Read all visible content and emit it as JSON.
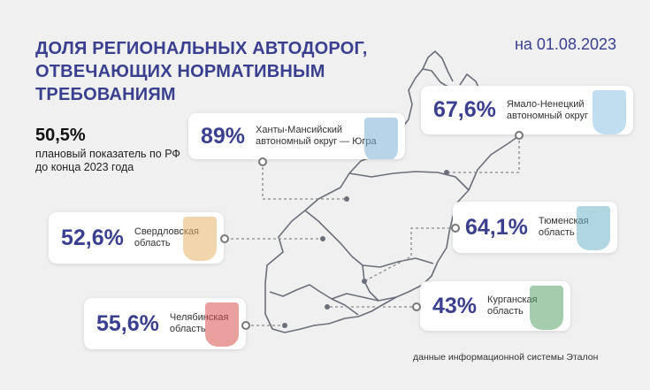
{
  "header": {
    "title": "ДОЛЯ РЕГИОНАЛЬНЫХ АВТОДОРОГ, ОТВЕЧАЮЩИХ НОРМАТИВНЫМ ТРЕБОВАНИЯМ",
    "date": "на 01.08.2023"
  },
  "indicator": {
    "value": "50,5%",
    "caption": "плановый показатель по РФ до конца 2023 года"
  },
  "regions": [
    {
      "pct": "89%",
      "name_line1": "Ханты-Мансийский",
      "name_line2": "автономный округ — Югра",
      "emblem": "khmao-emblem",
      "emblem_color": "#7db1d6"
    },
    {
      "pct": "67,6%",
      "name_line1": "Ямало-Ненецкий",
      "name_line2": "автономный округ",
      "emblem": "yanao-emblem",
      "emblem_color": "#8cc3e3"
    },
    {
      "pct": "52,6%",
      "name_line1": "Свердловская",
      "name_line2": "область",
      "emblem": "sverdlovsk-emblem",
      "emblem_color": "#e5b56a"
    },
    {
      "pct": "64,1%",
      "name_line1": "Тюменская",
      "name_line2": "область",
      "emblem": "tyumen-emblem",
      "emblem_color": "#6fb4c9"
    },
    {
      "pct": "43%",
      "name_line1": "Курганская",
      "name_line2": "область",
      "emblem": "kurgan-emblem",
      "emblem_color": "#5aa46a"
    },
    {
      "pct": "55,6%",
      "name_line1": "Челябинская",
      "name_line2": "область",
      "emblem": "chelyabinsk-emblem",
      "emblem_color": "#d9534f"
    }
  ],
  "footnote": "данные информационной системы Эталон",
  "colors": {
    "accent": "#3a3f8f",
    "background": "#f0f0f1",
    "map_line": "#6b6f7a"
  }
}
